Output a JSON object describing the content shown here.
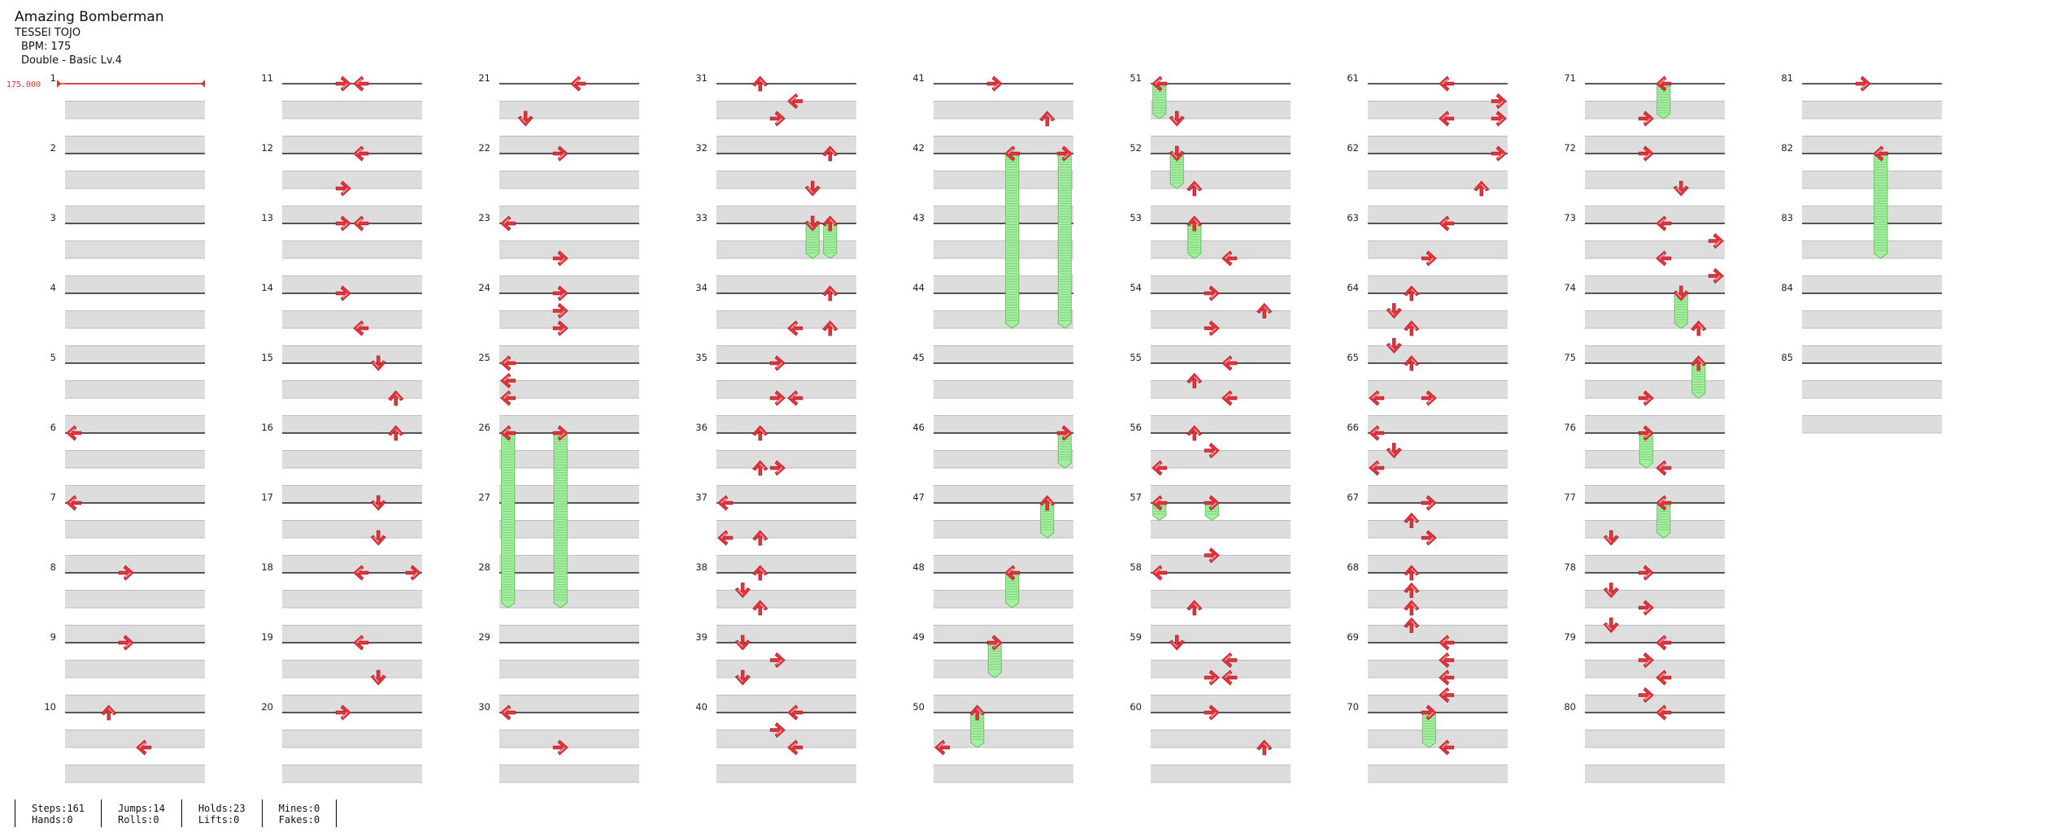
{
  "song": {
    "title": "Amazing Bomberman",
    "artist": "TESSEI TOJO",
    "bpm_text": "BPM: 175",
    "difficulty_text": "Double - Basic  Lv.4"
  },
  "chart_data": {
    "type": "table",
    "bpm_marker": "175.000",
    "measure_count": 85,
    "columns": 9,
    "measures_per_column": 10,
    "lanes": 8,
    "notes": [
      {
        "m": 6,
        "b": 0,
        "l": 0,
        "t": "arrow"
      },
      {
        "m": 7,
        "b": 0,
        "l": 0,
        "t": "arrow"
      },
      {
        "m": 8,
        "b": 0,
        "l": 3,
        "t": "arrow"
      },
      {
        "m": 9,
        "b": 0,
        "l": 3,
        "t": "arrow"
      },
      {
        "m": 10,
        "b": 0,
        "l": 2,
        "t": "arrow"
      },
      {
        "m": 10,
        "b": 2,
        "l": 4,
        "t": "arrow"
      },
      {
        "m": 11,
        "b": 0,
        "l": 3,
        "t": "arrow"
      },
      {
        "m": 11,
        "b": 0,
        "l": 4,
        "t": "arrow"
      },
      {
        "m": 12,
        "b": 0,
        "l": 4,
        "t": "arrow"
      },
      {
        "m": 12,
        "b": 2,
        "l": 3,
        "t": "arrow"
      },
      {
        "m": 13,
        "b": 0,
        "l": 3,
        "t": "arrow"
      },
      {
        "m": 13,
        "b": 0,
        "l": 4,
        "t": "arrow"
      },
      {
        "m": 14,
        "b": 0,
        "l": 3,
        "t": "arrow"
      },
      {
        "m": 14,
        "b": 2,
        "l": 4,
        "t": "arrow"
      },
      {
        "m": 15,
        "b": 0,
        "l": 5,
        "t": "arrow"
      },
      {
        "m": 15,
        "b": 2,
        "l": 6,
        "t": "arrow"
      },
      {
        "m": 16,
        "b": 0,
        "l": 6,
        "t": "arrow"
      },
      {
        "m": 17,
        "b": 0,
        "l": 5,
        "t": "arrow"
      },
      {
        "m": 17,
        "b": 2,
        "l": 5,
        "t": "arrow"
      },
      {
        "m": 18,
        "b": 0,
        "l": 4,
        "t": "arrow"
      },
      {
        "m": 18,
        "b": 0,
        "l": 7,
        "t": "arrow"
      },
      {
        "m": 19,
        "b": 0,
        "l": 4,
        "t": "arrow"
      },
      {
        "m": 19,
        "b": 2,
        "l": 5,
        "t": "arrow"
      },
      {
        "m": 20,
        "b": 0,
        "l": 3,
        "t": "arrow"
      },
      {
        "m": 21,
        "b": 0,
        "l": 4,
        "t": "arrow"
      },
      {
        "m": 21,
        "b": 2,
        "l": 1,
        "t": "arrow"
      },
      {
        "m": 22,
        "b": 0,
        "l": 3,
        "t": "arrow"
      },
      {
        "m": 23,
        "b": 0,
        "l": 0,
        "t": "arrow"
      },
      {
        "m": 23,
        "b": 2,
        "l": 3,
        "t": "arrow"
      },
      {
        "m": 24,
        "b": 0,
        "l": 3,
        "t": "arrow"
      },
      {
        "m": 24,
        "b": 1,
        "l": 3,
        "t": "arrow"
      },
      {
        "m": 24,
        "b": 2,
        "l": 3,
        "t": "arrow"
      },
      {
        "m": 25,
        "b": 0,
        "l": 0,
        "t": "arrow"
      },
      {
        "m": 25,
        "b": 1,
        "l": 0,
        "t": "arrow"
      },
      {
        "m": 25,
        "b": 2,
        "l": 0,
        "t": "arrow"
      },
      {
        "m": 26,
        "b": 0,
        "l": 0,
        "t": "hold",
        "len": 2.5
      },
      {
        "m": 26,
        "b": 0,
        "l": 3,
        "t": "hold",
        "len": 2.5
      },
      {
        "m": 30,
        "b": 0,
        "l": 0,
        "t": "arrow"
      },
      {
        "m": 30,
        "b": 2,
        "l": 3,
        "t": "arrow"
      },
      {
        "m": 31,
        "b": 0,
        "l": 2,
        "t": "arrow"
      },
      {
        "m": 31,
        "b": 1,
        "l": 4,
        "t": "arrow"
      },
      {
        "m": 31,
        "b": 2,
        "l": 3,
        "t": "arrow"
      },
      {
        "m": 32,
        "b": 0,
        "l": 6,
        "t": "arrow"
      },
      {
        "m": 32,
        "b": 2,
        "l": 5,
        "t": "arrow"
      },
      {
        "m": 33,
        "b": 0,
        "l": 5,
        "t": "hold",
        "len": 0.5
      },
      {
        "m": 33,
        "b": 0,
        "l": 6,
        "t": "hold",
        "len": 0.5
      },
      {
        "m": 34,
        "b": 0,
        "l": 6,
        "t": "arrow"
      },
      {
        "m": 34,
        "b": 2,
        "l": 4,
        "t": "arrow"
      },
      {
        "m": 34,
        "b": 2,
        "l": 6,
        "t": "arrow"
      },
      {
        "m": 35,
        "b": 0,
        "l": 3,
        "t": "arrow"
      },
      {
        "m": 35,
        "b": 2,
        "l": 3,
        "t": "arrow"
      },
      {
        "m": 35,
        "b": 2,
        "l": 4,
        "t": "arrow"
      },
      {
        "m": 36,
        "b": 0,
        "l": 2,
        "t": "arrow"
      },
      {
        "m": 36,
        "b": 2,
        "l": 2,
        "t": "arrow"
      },
      {
        "m": 36,
        "b": 2,
        "l": 3,
        "t": "arrow"
      },
      {
        "m": 37,
        "b": 0,
        "l": 0,
        "t": "arrow"
      },
      {
        "m": 37,
        "b": 2,
        "l": 0,
        "t": "arrow"
      },
      {
        "m": 37,
        "b": 2,
        "l": 2,
        "t": "arrow"
      },
      {
        "m": 38,
        "b": 0,
        "l": 2,
        "t": "arrow"
      },
      {
        "m": 38,
        "b": 1,
        "l": 1,
        "t": "arrow"
      },
      {
        "m": 38,
        "b": 2,
        "l": 2,
        "t": "arrow"
      },
      {
        "m": 39,
        "b": 0,
        "l": 1,
        "t": "arrow"
      },
      {
        "m": 39,
        "b": 1,
        "l": 3,
        "t": "arrow"
      },
      {
        "m": 39,
        "b": 2,
        "l": 1,
        "t": "arrow"
      },
      {
        "m": 40,
        "b": 0,
        "l": 4,
        "t": "arrow"
      },
      {
        "m": 40,
        "b": 1,
        "l": 3,
        "t": "arrow"
      },
      {
        "m": 40,
        "b": 2,
        "l": 4,
        "t": "arrow"
      },
      {
        "m": 41,
        "b": 0,
        "l": 3,
        "t": "arrow"
      },
      {
        "m": 41,
        "b": 2,
        "l": 6,
        "t": "arrow"
      },
      {
        "m": 42,
        "b": 0,
        "l": 4,
        "t": "hold",
        "len": 2.5
      },
      {
        "m": 42,
        "b": 0,
        "l": 7,
        "t": "hold",
        "len": 2.5
      },
      {
        "m": 46,
        "b": 0,
        "l": 7,
        "t": "hold",
        "len": 0.5
      },
      {
        "m": 47,
        "b": 0,
        "l": 6,
        "t": "hold",
        "len": 0.5
      },
      {
        "m": 48,
        "b": 0,
        "l": 4,
        "t": "hold",
        "len": 0.5
      },
      {
        "m": 49,
        "b": 0,
        "l": 3,
        "t": "hold",
        "len": 0.5
      },
      {
        "m": 50,
        "b": 0,
        "l": 2,
        "t": "hold",
        "len": 0.5
      },
      {
        "m": 50,
        "b": 2,
        "l": 0,
        "t": "arrow"
      },
      {
        "m": 51,
        "b": 0,
        "l": 0,
        "t": "hold",
        "len": 0.5
      },
      {
        "m": 51,
        "b": 2,
        "l": 1,
        "t": "arrow"
      },
      {
        "m": 52,
        "b": 0,
        "l": 1,
        "t": "hold",
        "len": 0.5
      },
      {
        "m": 52,
        "b": 2,
        "l": 2,
        "t": "arrow"
      },
      {
        "m": 53,
        "b": 0,
        "l": 2,
        "t": "hold",
        "len": 0.5
      },
      {
        "m": 53,
        "b": 2,
        "l": 4,
        "t": "arrow"
      },
      {
        "m": 54,
        "b": 0,
        "l": 3,
        "t": "arrow"
      },
      {
        "m": 54,
        "b": 1,
        "l": 6,
        "t": "arrow"
      },
      {
        "m": 54,
        "b": 2,
        "l": 3,
        "t": "arrow"
      },
      {
        "m": 55,
        "b": 0,
        "l": 4,
        "t": "arrow"
      },
      {
        "m": 55,
        "b": 1,
        "l": 2,
        "t": "arrow"
      },
      {
        "m": 55,
        "b": 2,
        "l": 4,
        "t": "arrow"
      },
      {
        "m": 56,
        "b": 0,
        "l": 2,
        "t": "arrow"
      },
      {
        "m": 56,
        "b": 1,
        "l": 3,
        "t": "arrow"
      },
      {
        "m": 56,
        "b": 2,
        "l": 0,
        "t": "arrow"
      },
      {
        "m": 57,
        "b": 0,
        "l": 0,
        "t": "hold",
        "len": 0.25
      },
      {
        "m": 57,
        "b": 0,
        "l": 3,
        "t": "hold",
        "len": 0.25
      },
      {
        "m": 57,
        "b": 3,
        "l": 3,
        "t": "arrow"
      },
      {
        "m": 58,
        "b": 0,
        "l": 0,
        "t": "arrow"
      },
      {
        "m": 58,
        "b": 2,
        "l": 2,
        "t": "arrow"
      },
      {
        "m": 59,
        "b": 0,
        "l": 1,
        "t": "arrow"
      },
      {
        "m": 59,
        "b": 1,
        "l": 4,
        "t": "arrow"
      },
      {
        "m": 59,
        "b": 2,
        "l": 3,
        "t": "arrow"
      },
      {
        "m": 59,
        "b": 2,
        "l": 4,
        "t": "arrow"
      },
      {
        "m": 60,
        "b": 0,
        "l": 3,
        "t": "arrow"
      },
      {
        "m": 60,
        "b": 2,
        "l": 6,
        "t": "arrow"
      },
      {
        "m": 61,
        "b": 0,
        "l": 4,
        "t": "arrow"
      },
      {
        "m": 61,
        "b": 1,
        "l": 7,
        "t": "arrow"
      },
      {
        "m": 61,
        "b": 2,
        "l": 4,
        "t": "arrow"
      },
      {
        "m": 61,
        "b": 2,
        "l": 7,
        "t": "arrow"
      },
      {
        "m": 62,
        "b": 0,
        "l": 7,
        "t": "arrow"
      },
      {
        "m": 62,
        "b": 2,
        "l": 6,
        "t": "arrow"
      },
      {
        "m": 63,
        "b": 0,
        "l": 4,
        "t": "arrow"
      },
      {
        "m": 63,
        "b": 2,
        "l": 3,
        "t": "arrow"
      },
      {
        "m": 64,
        "b": 0,
        "l": 2,
        "t": "arrow"
      },
      {
        "m": 64,
        "b": 1,
        "l": 1,
        "t": "arrow"
      },
      {
        "m": 64,
        "b": 2,
        "l": 2,
        "t": "arrow"
      },
      {
        "m": 64,
        "b": 3,
        "l": 1,
        "t": "arrow"
      },
      {
        "m": 65,
        "b": 0,
        "l": 2,
        "t": "arrow"
      },
      {
        "m": 65,
        "b": 2,
        "l": 0,
        "t": "arrow"
      },
      {
        "m": 65,
        "b": 2,
        "l": 3,
        "t": "arrow"
      },
      {
        "m": 66,
        "b": 0,
        "l": 0,
        "t": "arrow"
      },
      {
        "m": 66,
        "b": 1,
        "l": 1,
        "t": "arrow"
      },
      {
        "m": 66,
        "b": 2,
        "l": 0,
        "t": "arrow"
      },
      {
        "m": 67,
        "b": 0,
        "l": 3,
        "t": "arrow"
      },
      {
        "m": 67,
        "b": 1,
        "l": 2,
        "t": "arrow"
      },
      {
        "m": 67,
        "b": 2,
        "l": 3,
        "t": "arrow"
      },
      {
        "m": 68,
        "b": 0,
        "l": 2,
        "t": "arrow"
      },
      {
        "m": 68,
        "b": 1,
        "l": 2,
        "t": "arrow"
      },
      {
        "m": 68,
        "b": 2,
        "l": 2,
        "t": "arrow"
      },
      {
        "m": 68,
        "b": 3,
        "l": 2,
        "t": "arrow"
      },
      {
        "m": 69,
        "b": 0,
        "l": 4,
        "t": "arrow"
      },
      {
        "m": 69,
        "b": 1,
        "l": 4,
        "t": "arrow"
      },
      {
        "m": 69,
        "b": 2,
        "l": 4,
        "t": "arrow"
      },
      {
        "m": 69,
        "b": 3,
        "l": 4,
        "t": "arrow"
      },
      {
        "m": 70,
        "b": 0,
        "l": 3,
        "t": "hold",
        "len": 0.5
      },
      {
        "m": 70,
        "b": 2,
        "l": 4,
        "t": "arrow"
      },
      {
        "m": 71,
        "b": 0,
        "l": 4,
        "t": "hold",
        "len": 0.5
      },
      {
        "m": 71,
        "b": 2,
        "l": 3,
        "t": "arrow"
      },
      {
        "m": 72,
        "b": 0,
        "l": 3,
        "t": "arrow"
      },
      {
        "m": 72,
        "b": 2,
        "l": 5,
        "t": "arrow"
      },
      {
        "m": 73,
        "b": 0,
        "l": 4,
        "t": "arrow"
      },
      {
        "m": 73,
        "b": 1,
        "l": 7,
        "t": "arrow"
      },
      {
        "m": 73,
        "b": 2,
        "l": 4,
        "t": "arrow"
      },
      {
        "m": 73,
        "b": 3,
        "l": 7,
        "t": "arrow"
      },
      {
        "m": 74,
        "b": 0,
        "l": 5,
        "t": "hold",
        "len": 0.5
      },
      {
        "m": 74,
        "b": 2,
        "l": 6,
        "t": "arrow"
      },
      {
        "m": 75,
        "b": 0,
        "l": 6,
        "t": "hold",
        "len": 0.5
      },
      {
        "m": 75,
        "b": 2,
        "l": 3,
        "t": "arrow"
      },
      {
        "m": 76,
        "b": 0,
        "l": 3,
        "t": "hold",
        "len": 0.5
      },
      {
        "m": 76,
        "b": 2,
        "l": 4,
        "t": "arrow"
      },
      {
        "m": 77,
        "b": 0,
        "l": 4,
        "t": "hold",
        "len": 0.5
      },
      {
        "m": 77,
        "b": 2,
        "l": 1,
        "t": "arrow"
      },
      {
        "m": 78,
        "b": 0,
        "l": 3,
        "t": "arrow"
      },
      {
        "m": 78,
        "b": 1,
        "l": 1,
        "t": "arrow"
      },
      {
        "m": 78,
        "b": 2,
        "l": 3,
        "t": "arrow"
      },
      {
        "m": 78,
        "b": 3,
        "l": 1,
        "t": "arrow"
      },
      {
        "m": 79,
        "b": 0,
        "l": 4,
        "t": "arrow"
      },
      {
        "m": 79,
        "b": 1,
        "l": 3,
        "t": "arrow"
      },
      {
        "m": 79,
        "b": 2,
        "l": 4,
        "t": "arrow"
      },
      {
        "m": 79,
        "b": 3,
        "l": 3,
        "t": "arrow"
      },
      {
        "m": 80,
        "b": 0,
        "l": 4,
        "t": "arrow"
      },
      {
        "m": 81,
        "b": 0,
        "l": 3,
        "t": "arrow"
      },
      {
        "m": 82,
        "b": 0,
        "l": 4,
        "t": "hold",
        "len": 1.5
      }
    ],
    "colors": {
      "arrow": "#e8353d",
      "hold_fill": "#a6eea2",
      "hold_line": "#5cc058",
      "band": "#dddddd",
      "line": "#222222",
      "bpm": "#e03030"
    }
  },
  "stats": [
    [
      "Steps:161",
      "Hands:0"
    ],
    [
      "Jumps:14",
      "Rolls:0"
    ],
    [
      "Holds:23",
      "Lifts:0"
    ],
    [
      "Mines:0",
      "Fakes:0"
    ]
  ]
}
